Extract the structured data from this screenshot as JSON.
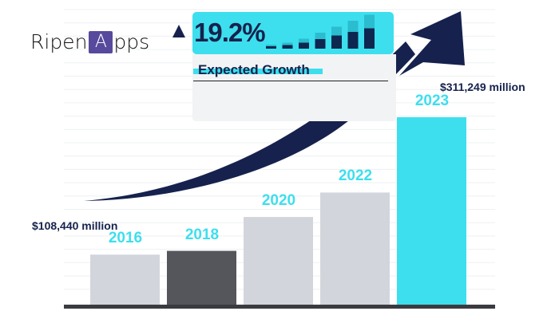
{
  "brand": {
    "logo_text": "RipenApps",
    "logo_parts": [
      "Ripen",
      "A",
      "pps"
    ]
  },
  "growth_card": {
    "value": "19.2%",
    "label": "Expected Growth",
    "icon": "triangle-up-icon",
    "mini_bar_levels": [
      0.1,
      0.15,
      0.25,
      0.4,
      0.55,
      0.7,
      0.85
    ]
  },
  "colors": {
    "accent": "#3ddfee",
    "navy": "#16224d",
    "bar_gray": "#d2d5dc",
    "bar_dark": "#55565b",
    "axis": "#3a3b40"
  },
  "chart_data": {
    "type": "bar",
    "title": "",
    "categories": [
      "2016",
      "2018",
      "2020",
      "2022",
      "2023"
    ],
    "values": [
      108440,
      null,
      null,
      null,
      311249
    ],
    "relative_heights": [
      0.27,
      0.29,
      0.47,
      0.6,
      1.0
    ],
    "bar_colors": [
      "#d2d5dc",
      "#55565b",
      "#d2d5dc",
      "#d2d5dc",
      "#3ddfee"
    ],
    "annotations": [
      "$108,440 million",
      "$311,249 million"
    ],
    "grid": true,
    "trend_arrow": "upward"
  }
}
